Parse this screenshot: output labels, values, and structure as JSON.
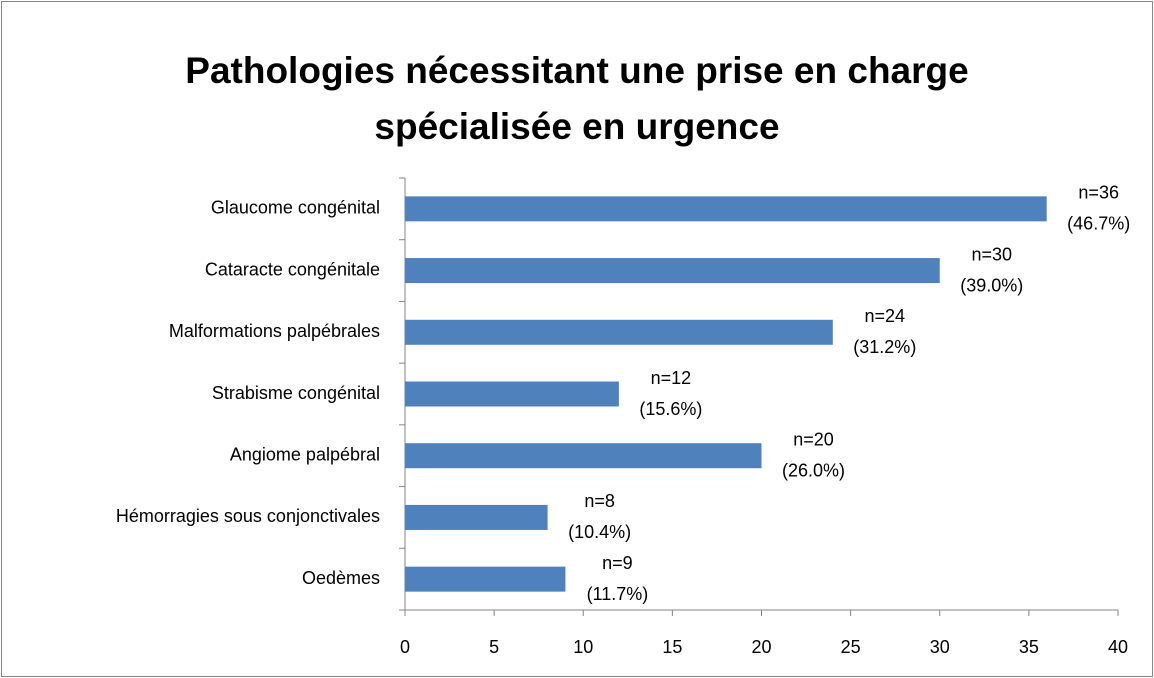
{
  "chart_data": {
    "type": "barh",
    "title": [
      "Pathologies nécessitant une prise en charge",
      "spécialisée en urgence"
    ],
    "categories": [
      "Glaucome congénital",
      "Cataracte congénitale",
      "Malformations palpébrales",
      "Strabisme congénital",
      "Angiome palpébral",
      "Hémorragies sous conjonctivales",
      "Oedèmes"
    ],
    "values": [
      36,
      30,
      24,
      12,
      20,
      8,
      9
    ],
    "value_labels": [
      "n=36",
      "n=30",
      "n=24",
      "n=12",
      "n=20",
      "n=8",
      "n=9"
    ],
    "percentage_labels": [
      "(46.7%)",
      "(39.0%)",
      "(31.2%)",
      "(15.6%)",
      "(26.0%)",
      "(10.4%)",
      "(11.7%)"
    ],
    "color": "#4f81bd",
    "xlim": [
      0,
      40
    ],
    "xticks": [
      0,
      5,
      10,
      15,
      20,
      25,
      30,
      35,
      40
    ]
  }
}
